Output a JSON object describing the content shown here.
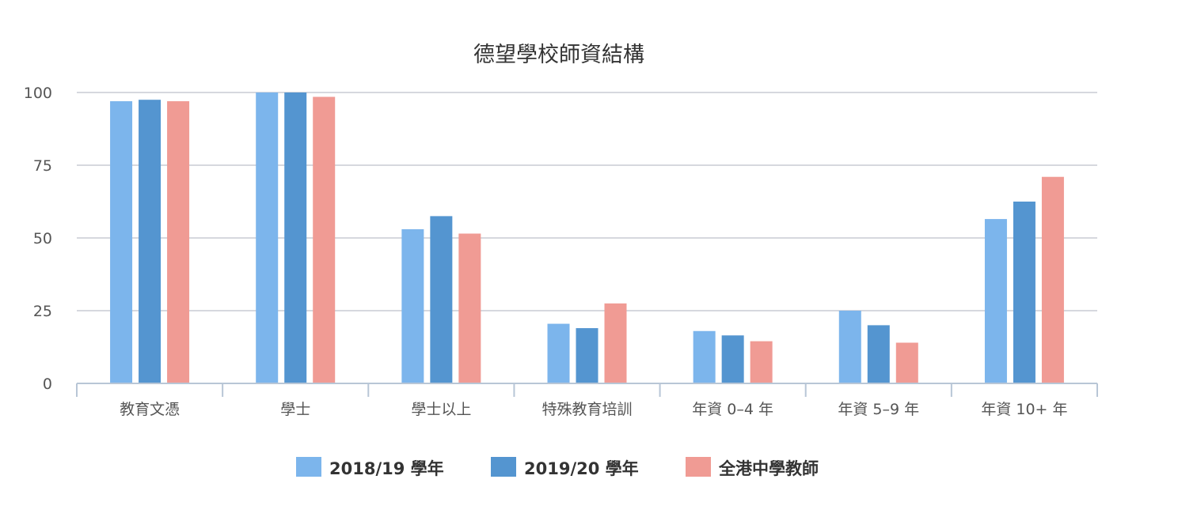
{
  "chart_data": {
    "type": "bar",
    "title": "德望學校師資結構",
    "xlabel": "",
    "ylabel": "",
    "ylim": [
      0,
      100
    ],
    "yticks": [
      0,
      25,
      50,
      75,
      100
    ],
    "grid": true,
    "legend_position": "bottom",
    "categories": [
      "教育文憑",
      "學士",
      "學士以上",
      "特殊教育培訓",
      "年資 0–4 年",
      "年資 5–9 年",
      "年資 10+ 年"
    ],
    "series": [
      {
        "name": "2018/19 學年",
        "color": "#7cb5ec",
        "values": [
          97,
          100,
          53,
          20.5,
          18,
          25,
          56.5
        ]
      },
      {
        "name": "2019/20 學年",
        "color": "#5495d0",
        "values": [
          97.5,
          100,
          57.5,
          19,
          16.5,
          20,
          62.5
        ]
      },
      {
        "name": "全港中學教師",
        "color": "#f09b94",
        "values": [
          97,
          98.5,
          51.5,
          27.5,
          14.5,
          14,
          71
        ]
      }
    ]
  }
}
